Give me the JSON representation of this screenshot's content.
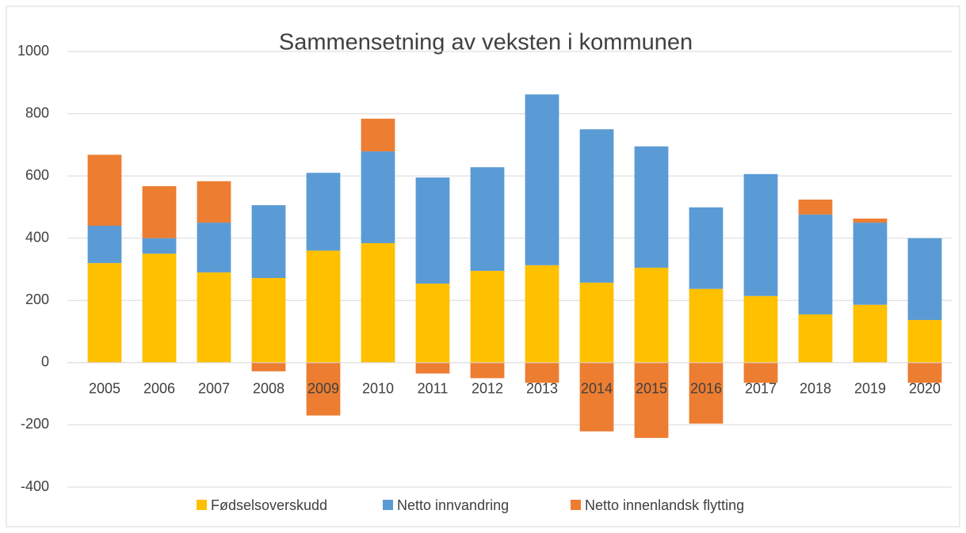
{
  "chart_data": {
    "type": "bar",
    "stacked": true,
    "title": "Sammensetning av veksten i kommunen",
    "categories": [
      "2005",
      "2006",
      "2007",
      "2008",
      "2009",
      "2010",
      "2011",
      "2012",
      "2013",
      "2014",
      "2015",
      "2016",
      "2017",
      "2018",
      "2019",
      "2020"
    ],
    "series": [
      {
        "name": "Fødselsoverskudd",
        "color": "#ffc000",
        "values": [
          320,
          350,
          290,
          272,
          360,
          384,
          254,
          295,
          313,
          257,
          305,
          237,
          214,
          155,
          186,
          137
        ]
      },
      {
        "name": "Netto innvandring",
        "color": "#5b9bd5",
        "values": [
          120,
          50,
          160,
          234,
          250,
          295,
          341,
          333,
          549,
          493,
          390,
          262,
          392,
          321,
          264,
          263
        ]
      },
      {
        "name": "Netto innenlandsk flytting",
        "color": "#ed7d31",
        "values": [
          228,
          167,
          133,
          -28,
          -170,
          105,
          -35,
          -50,
          -65,
          -221,
          -242,
          -196,
          -65,
          48,
          13,
          -65
        ]
      }
    ],
    "ylim": [
      -400,
      1000
    ],
    "yticks": [
      -400,
      -200,
      0,
      200,
      400,
      600,
      800,
      1000
    ],
    "grid": true,
    "legend": "bottom"
  }
}
